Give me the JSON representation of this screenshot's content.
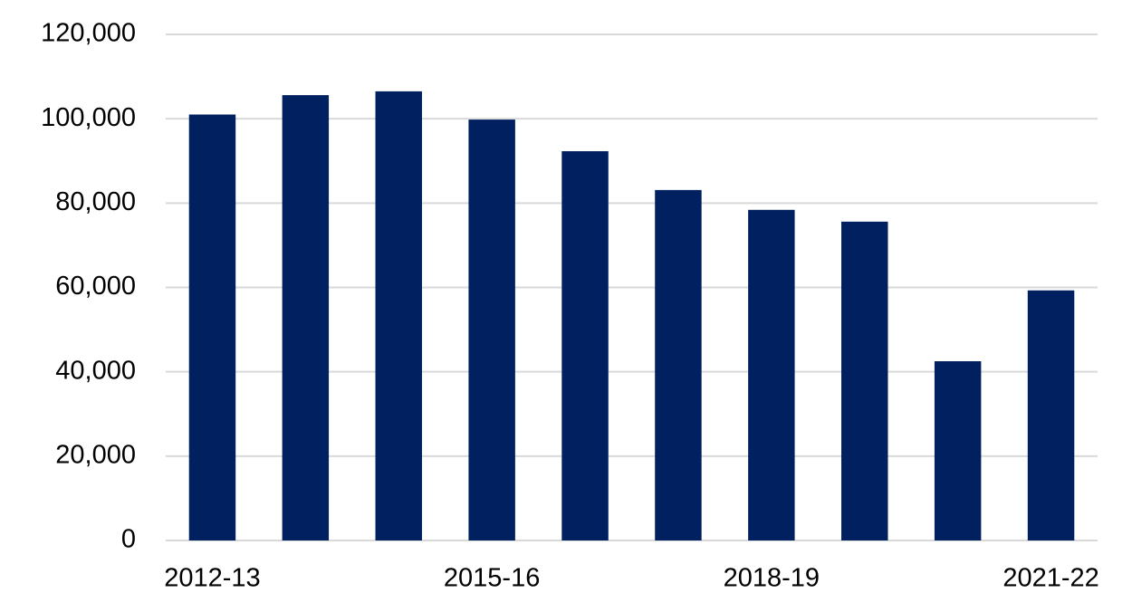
{
  "chart_data": {
    "type": "bar",
    "categories": [
      "2012-13",
      null,
      null,
      "2015-16",
      null,
      null,
      "2018-19",
      null,
      null,
      "2021-22"
    ],
    "values": [
      101000,
      105600,
      106500,
      99800,
      92300,
      83100,
      78400,
      75600,
      42500,
      59300
    ],
    "color": "#002060",
    "ylim": [
      0,
      120000
    ],
    "yticks": [
      0,
      {
        "value": 20000,
        "label": "20,000"
      },
      {
        "value": 40000,
        "label": "40,000"
      },
      {
        "value": 60000,
        "label": "60,000"
      },
      {
        "value": 80000,
        "label": "80,000"
      },
      {
        "value": 100000,
        "label": "100,000"
      },
      {
        "value": 120000,
        "label": "120,000"
      }
    ],
    "grid": true
  }
}
